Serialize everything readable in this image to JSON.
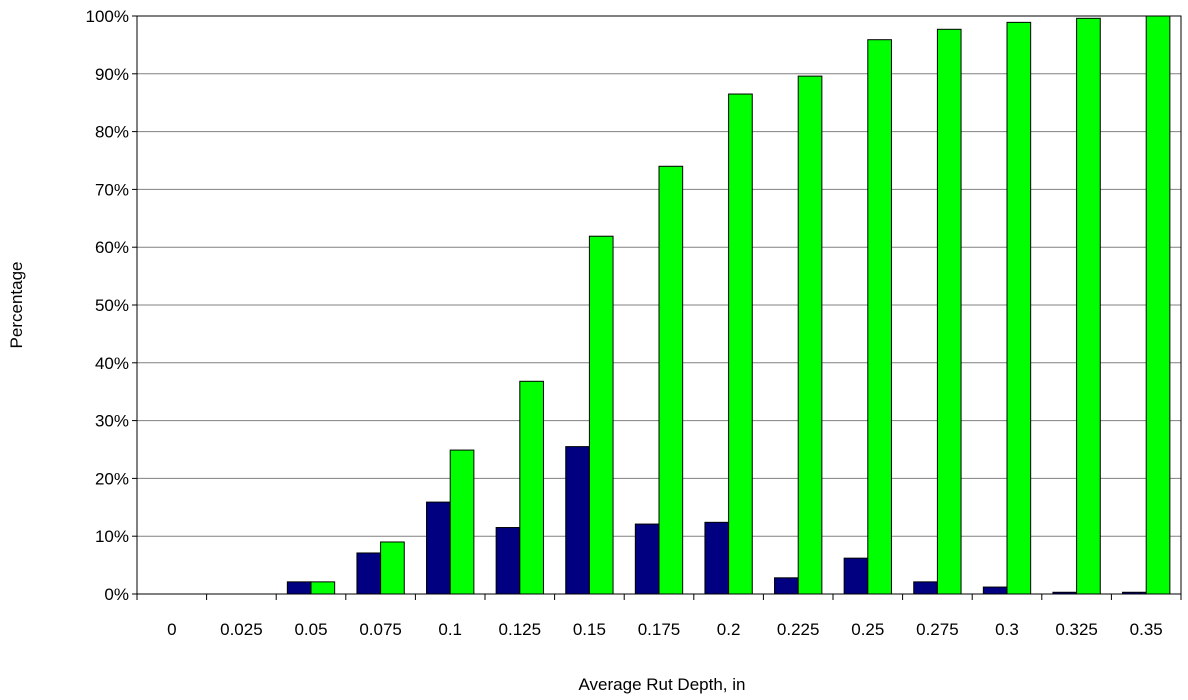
{
  "chart_data": {
    "type": "bar",
    "title": "",
    "xlabel": "Average Rut Depth, in",
    "ylabel": "Percentage",
    "categories": [
      "0",
      "0.025",
      "0.05",
      "0.075",
      "0.1",
      "0.125",
      "0.15",
      "0.175",
      "0.2",
      "0.225",
      "0.25",
      "0.275",
      "0.3",
      "0.325",
      "0.35"
    ],
    "series": [
      {
        "color": "#000080",
        "values": [
          0,
          0,
          2.1,
          7.1,
          15.9,
          11.5,
          25.5,
          12.1,
          12.4,
          2.8,
          6.2,
          2.1,
          1.2,
          0.3,
          0.3
        ]
      },
      {
        "color": "#00ff00",
        "values": [
          0,
          0,
          2.1,
          9.0,
          24.9,
          36.8,
          61.9,
          74.0,
          86.5,
          89.6,
          95.9,
          97.7,
          98.9,
          99.6,
          100
        ]
      }
    ],
    "ylim": [
      0,
      100
    ],
    "yticks": [
      0,
      10,
      20,
      30,
      40,
      50,
      60,
      70,
      80,
      90,
      100
    ],
    "ytick_labels": [
      "0%",
      "10%",
      "20%",
      "30%",
      "40%",
      "50%",
      "60%",
      "70%",
      "80%",
      "90%",
      "100%"
    ],
    "grid": true,
    "legend": "none"
  }
}
